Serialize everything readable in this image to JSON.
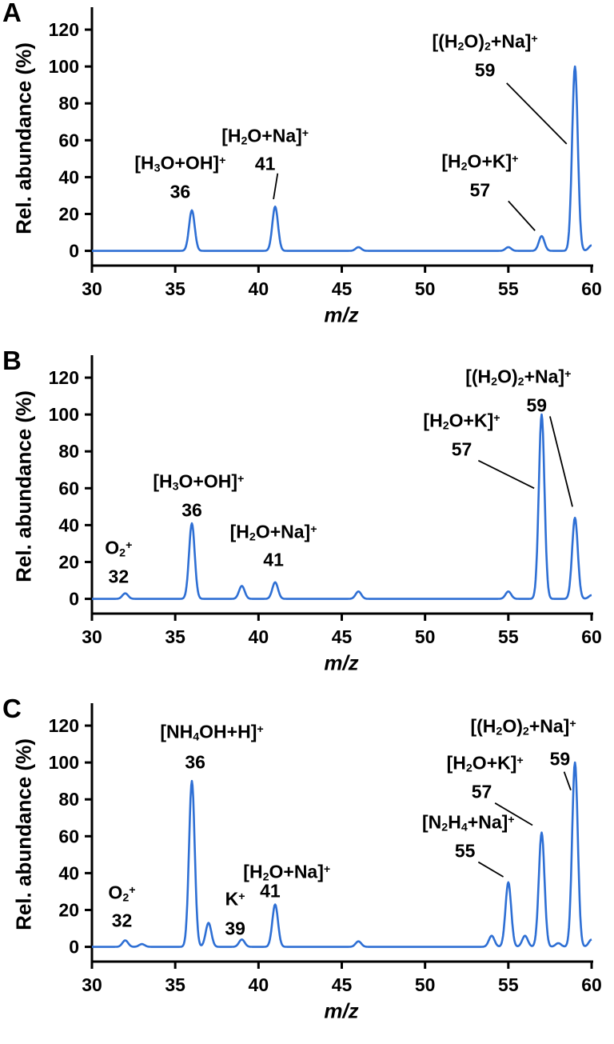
{
  "figure": {
    "background": "#ffffff",
    "axis_color": "#000000",
    "line_color": "#2e6fd4"
  },
  "chart_data": [
    {
      "type": "line",
      "panel": "A",
      "xlabel": "m/z",
      "ylabel": "Rel. abundance (%)",
      "xlim": [
        30,
        60
      ],
      "ylim": [
        -8,
        130
      ],
      "xticks": [
        30,
        35,
        40,
        45,
        50,
        55,
        60
      ],
      "yticks": [
        0,
        20,
        40,
        60,
        80,
        100,
        120
      ],
      "grid": false,
      "line_color": "#2e6fd4",
      "peaks": [
        {
          "mz": 36,
          "abundance": 22,
          "assignment": "[H_3O+OH]^+"
        },
        {
          "mz": 41,
          "abundance": 24,
          "assignment": "[H_2O+Na]^+"
        },
        {
          "mz": 46,
          "abundance": 2
        },
        {
          "mz": 55,
          "abundance": 2
        },
        {
          "mz": 57,
          "abundance": 8,
          "assignment": "[H_2O+K]^+"
        },
        {
          "mz": 59,
          "abundance": 100,
          "assignment": "[(H_2O)_2+Na]^+"
        },
        {
          "mz": 60,
          "abundance": 3
        }
      ],
      "annotations": [
        {
          "text": "[H_3O+OH]^+",
          "x": 35.3,
          "y": 47
        },
        {
          "text": "36",
          "x": 35.3,
          "y": 32
        },
        {
          "text": "[H_2O+Na]^+",
          "x": 40.4,
          "y": 62
        },
        {
          "text": "41",
          "x": 40.4,
          "y": 47
        },
        {
          "text": "[H_2O+K]^+",
          "x": 53.3,
          "y": 48
        },
        {
          "text": "57",
          "x": 53.3,
          "y": 33
        },
        {
          "text": "[(H_2O)_2+Na]^+",
          "x": 53.6,
          "y": 113
        },
        {
          "text": "59",
          "x": 53.6,
          "y": 98
        }
      ],
      "leaders": [
        [
          41.15,
          42,
          40.9,
          28
        ],
        [
          55.0,
          27,
          56.6,
          11
        ],
        [
          54.9,
          91,
          58.5,
          58
        ]
      ]
    },
    {
      "type": "line",
      "panel": "B",
      "xlabel": "m/z",
      "ylabel": "Rel. abundance (%)",
      "xlim": [
        30,
        60
      ],
      "ylim": [
        -8,
        130
      ],
      "xticks": [
        30,
        35,
        40,
        45,
        50,
        55,
        60
      ],
      "yticks": [
        0,
        20,
        40,
        60,
        80,
        100,
        120
      ],
      "grid": false,
      "line_color": "#2e6fd4",
      "peaks": [
        {
          "mz": 32,
          "abundance": 3,
          "assignment": "O_2^+"
        },
        {
          "mz": 36,
          "abundance": 41,
          "assignment": "[H_3O+OH]^+"
        },
        {
          "mz": 39,
          "abundance": 7
        },
        {
          "mz": 41,
          "abundance": 9,
          "assignment": "[H_2O+Na]^+"
        },
        {
          "mz": 46,
          "abundance": 4
        },
        {
          "mz": 55,
          "abundance": 4
        },
        {
          "mz": 57,
          "abundance": 100,
          "assignment": "[H_2O+K]^+"
        },
        {
          "mz": 59,
          "abundance": 44,
          "assignment": "[(H_2O)_2+Na]^+"
        },
        {
          "mz": 60,
          "abundance": 2
        }
      ],
      "annotations": [
        {
          "text": "O_2^+",
          "x": 31.6,
          "y": 27
        },
        {
          "text": "32",
          "x": 31.6,
          "y": 12
        },
        {
          "text": "[H_3O+OH]^+",
          "x": 36.4,
          "y": 63
        },
        {
          "text": "36",
          "x": 36.0,
          "y": 48
        },
        {
          "text": "[H_2O+Na]^+",
          "x": 40.9,
          "y": 36
        },
        {
          "text": "41",
          "x": 40.9,
          "y": 21
        },
        {
          "text": "[H_2O+K]^+",
          "x": 52.2,
          "y": 96
        },
        {
          "text": "57",
          "x": 52.2,
          "y": 81
        },
        {
          "text": "[(H_2O)_2+Na]^+",
          "x": 55.6,
          "y": 120
        },
        {
          "text": "59",
          "x": 56.7,
          "y": 105
        }
      ],
      "leaders": [
        [
          53.2,
          75,
          56.55,
          60
        ],
        [
          57.5,
          99,
          58.85,
          50
        ]
      ]
    },
    {
      "type": "line",
      "panel": "C",
      "xlabel": "m/z",
      "ylabel": "Rel. abundance (%)",
      "xlim": [
        30,
        60
      ],
      "ylim": [
        -8,
        130
      ],
      "xticks": [
        30,
        35,
        40,
        45,
        50,
        55,
        60
      ],
      "yticks": [
        0,
        20,
        40,
        60,
        80,
        100,
        120
      ],
      "grid": false,
      "line_color": "#2e6fd4",
      "peaks": [
        {
          "mz": 32,
          "abundance": 3.5,
          "assignment": "O_2^+"
        },
        {
          "mz": 33,
          "abundance": 1.5
        },
        {
          "mz": 36,
          "abundance": 90,
          "assignment": "[NH_4OH+H]^+"
        },
        {
          "mz": 37,
          "abundance": 13
        },
        {
          "mz": 39,
          "abundance": 4,
          "assignment": "K^+"
        },
        {
          "mz": 41,
          "abundance": 23,
          "assignment": "[H_2O+Na]^+"
        },
        {
          "mz": 46,
          "abundance": 3
        },
        {
          "mz": 54,
          "abundance": 6
        },
        {
          "mz": 55,
          "abundance": 35,
          "assignment": "[N_2H_4+Na]^+"
        },
        {
          "mz": 56,
          "abundance": 6
        },
        {
          "mz": 57,
          "abundance": 62,
          "assignment": "[H_2O+K]^+"
        },
        {
          "mz": 58,
          "abundance": 2
        },
        {
          "mz": 59,
          "abundance": 100,
          "assignment": "[(H_2O)_2+Na]^+"
        },
        {
          "mz": 60,
          "abundance": 4
        }
      ],
      "annotations": [
        {
          "text": "[NH_4OH+H]^+",
          "x": 37.2,
          "y": 116
        },
        {
          "text": "36",
          "x": 36.2,
          "y": 100
        },
        {
          "text": "O_2^+",
          "x": 31.8,
          "y": 29
        },
        {
          "text": "32",
          "x": 31.8,
          "y": 14
        },
        {
          "text": "[H_2O+Na]^+",
          "x": 41.7,
          "y": 40
        },
        {
          "text": "K^+",
          "x": 38.6,
          "y": 26
        },
        {
          "text": "41",
          "x": 40.7,
          "y": 30
        },
        {
          "text": "39",
          "x": 38.6,
          "y": 10
        },
        {
          "text": "[H_2O+K]^+",
          "x": 53.6,
          "y": 99
        },
        {
          "text": "57",
          "x": 53.4,
          "y": 84
        },
        {
          "text": "[N_2H_4+Na]^+",
          "x": 52.6,
          "y": 67
        },
        {
          "text": "55",
          "x": 52.4,
          "y": 52
        },
        {
          "text": "[(H_2O)_2+Na]^+",
          "x": 55.9,
          "y": 119
        },
        {
          "text": "59",
          "x": 58.1,
          "y": 102
        }
      ],
      "leaders": [
        [
          53.2,
          46,
          54.7,
          38
        ],
        [
          54.2,
          78,
          56.45,
          66
        ],
        [
          58.35,
          95,
          58.75,
          85
        ]
      ]
    }
  ]
}
